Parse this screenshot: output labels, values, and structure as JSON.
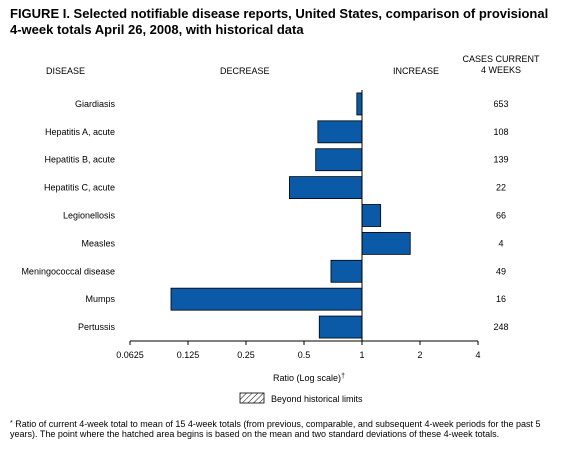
{
  "title": "FIGURE I. Selected notifiable disease reports, United States, comparison of provisional 4-week totals April 26, 2008, with historical data",
  "headers": {
    "disease": "DISEASE",
    "decrease": "DECREASE",
    "increase": "INCREASE",
    "cases_line1": "CASES CURRENT",
    "cases_line2": "4 WEEKS"
  },
  "legend_label": "Beyond historical limits",
  "footnote": {
    "mark": "*",
    "text": "Ratio of current 4-week total to mean of 15 4-week totals (from previous, comparable, and subsequent 4-week periods for the past 5 years). The point where the hatched area begins is based on the mean and two standard deviations of these 4-week totals."
  },
  "chart_data": {
    "type": "bar",
    "orientation": "horizontal",
    "categories": [
      "Giardiasis",
      "Hepatitis A, acute",
      "Hepatitis B, acute",
      "Hepatitis C, acute",
      "Legionellosis",
      "Measles",
      "Meningococcal disease",
      "Mumps",
      "Pertussis"
    ],
    "values": [
      0.94,
      0.59,
      0.575,
      0.42,
      1.25,
      1.78,
      0.69,
      0.102,
      0.6
    ],
    "cases_current_4_weeks": [
      "653",
      "108",
      "139",
      "22",
      "66",
      "4",
      "49",
      "16",
      "248"
    ],
    "xlabel": "Ratio (Log scale)",
    "xlabel_mark": "†",
    "xscale": "log2",
    "xlim": [
      0.0625,
      4
    ],
    "xticks": [
      "0.0625",
      "0.125",
      "0.25",
      "0.5",
      "1",
      "2",
      "4"
    ],
    "baseline": 1,
    "bar_color": "#0A5AA8"
  }
}
